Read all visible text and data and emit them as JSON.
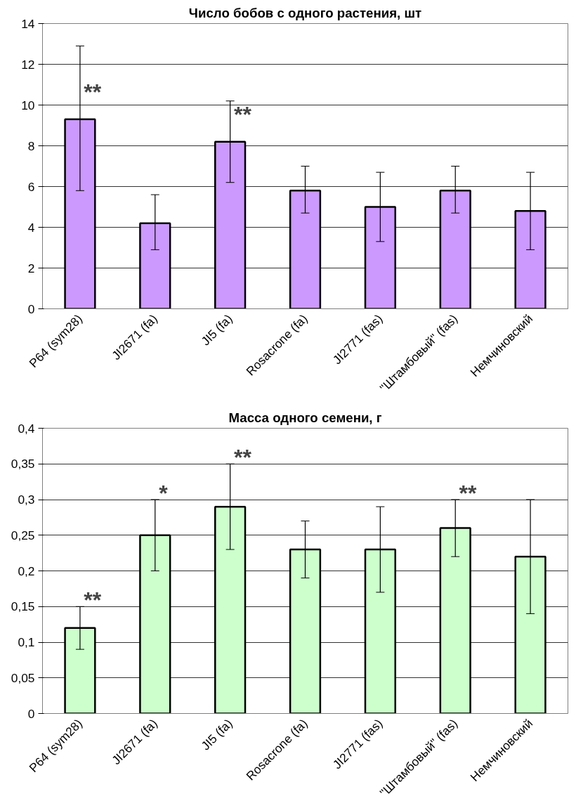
{
  "chart_data": [
    {
      "type": "bar",
      "title": "Число бобов с одного растения, шт",
      "categories": [
        "P64 (sym28)",
        "JI2671 (fa)",
        "JI5 (fa)",
        "Rosacrone (fa)",
        "JI2771 (fas)",
        "\"Штамбовый\" (fas)",
        "Немчиновский"
      ],
      "values": [
        9.3,
        4.2,
        8.2,
        5.8,
        5.0,
        5.8,
        4.8
      ],
      "errors": [
        [
          5.8,
          12.9
        ],
        [
          2.9,
          5.6
        ],
        [
          6.2,
          10.2
        ],
        [
          4.7,
          7.0
        ],
        [
          3.3,
          6.7
        ],
        [
          4.7,
          7.0
        ],
        [
          2.9,
          6.7
        ]
      ],
      "color": "#cc99ff",
      "ylim": [
        0,
        14
      ],
      "yticks": [
        0,
        2,
        4,
        6,
        8,
        10,
        12,
        14
      ],
      "grid": "y",
      "legend": false,
      "annotations": [
        {
          "text": "**",
          "x": "P64 (sym28)",
          "y": 10.5
        },
        {
          "text": "**",
          "x": "JI5 (fa)",
          "y": 9.4
        }
      ]
    },
    {
      "type": "bar",
      "title": "Масса одного семени, г",
      "categories": [
        "P64 (sym28)",
        "JI2671 (fa)",
        "JI5 (fa)",
        "Rosacrone (fa)",
        "JI2771 (fas)",
        "\"Штамбовый\" (fas)",
        "Немчиновский"
      ],
      "values": [
        0.12,
        0.25,
        0.29,
        0.23,
        0.23,
        0.26,
        0.22
      ],
      "errors": [
        [
          0.09,
          0.15
        ],
        [
          0.2,
          0.3
        ],
        [
          0.23,
          0.35
        ],
        [
          0.19,
          0.27
        ],
        [
          0.17,
          0.29
        ],
        [
          0.22,
          0.3
        ],
        [
          0.14,
          0.3
        ]
      ],
      "color": "#ccffcc",
      "ylim": [
        0,
        0.4
      ],
      "yticks": [
        0,
        {
          "value": 0.05,
          "label": "0,05"
        },
        {
          "value": 0.1,
          "label": "0,1"
        },
        {
          "value": 0.15,
          "label": "0,15"
        },
        {
          "value": 0.2,
          "label": "0,2"
        },
        {
          "value": 0.25,
          "label": "0,25"
        },
        {
          "value": 0.3,
          "label": "0,3"
        },
        {
          "value": 0.35,
          "label": "0,35"
        },
        {
          "value": 0.4,
          "label": "0,4"
        }
      ],
      "grid": "y",
      "legend": false,
      "annotations": [
        {
          "text": "**",
          "x": "P64 (sym28)",
          "y": 0.155
        },
        {
          "text": "*",
          "x": "JI2671 (fa)",
          "y": 0.305
        },
        {
          "text": "**",
          "x": "JI5 (fa)",
          "y": 0.355
        },
        {
          "text": "**",
          "x": "\"Штамбовый\" (fas)",
          "y": 0.305
        }
      ]
    }
  ]
}
